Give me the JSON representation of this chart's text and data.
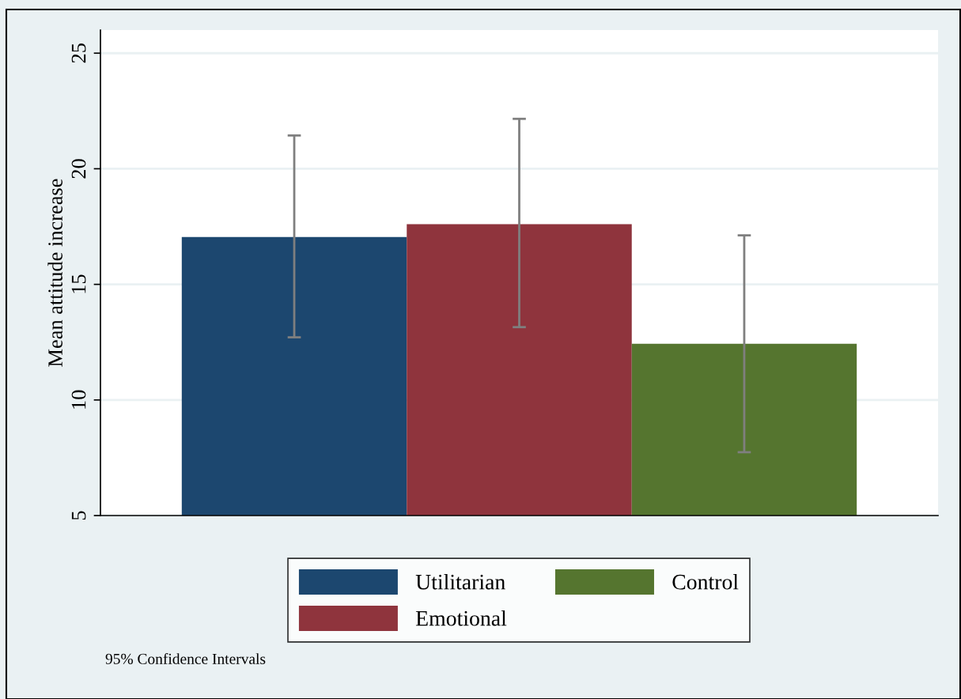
{
  "chart_data": {
    "type": "bar",
    "ylabel": "Mean attitude increase",
    "categories": [
      null
    ],
    "series": [
      {
        "name": "Utilitarian",
        "color": "#1c476f",
        "values": [
          17.05
        ],
        "errors": [
          [
            12.71,
            21.44
          ]
        ]
      },
      {
        "name": "Emotional",
        "color": "#8f343d",
        "values": [
          17.6
        ],
        "errors": [
          [
            13.15,
            22.16
          ]
        ]
      },
      {
        "name": "Control",
        "color": "#55752f",
        "values": [
          12.43
        ],
        "errors": [
          [
            7.74,
            17.12
          ]
        ]
      }
    ],
    "ylim": [
      5,
      26
    ],
    "yticks": [
      5,
      10,
      15,
      20,
      25
    ],
    "grid": "y",
    "legend": "bottom",
    "annotations": [
      "95% Confidence Intervals"
    ]
  }
}
